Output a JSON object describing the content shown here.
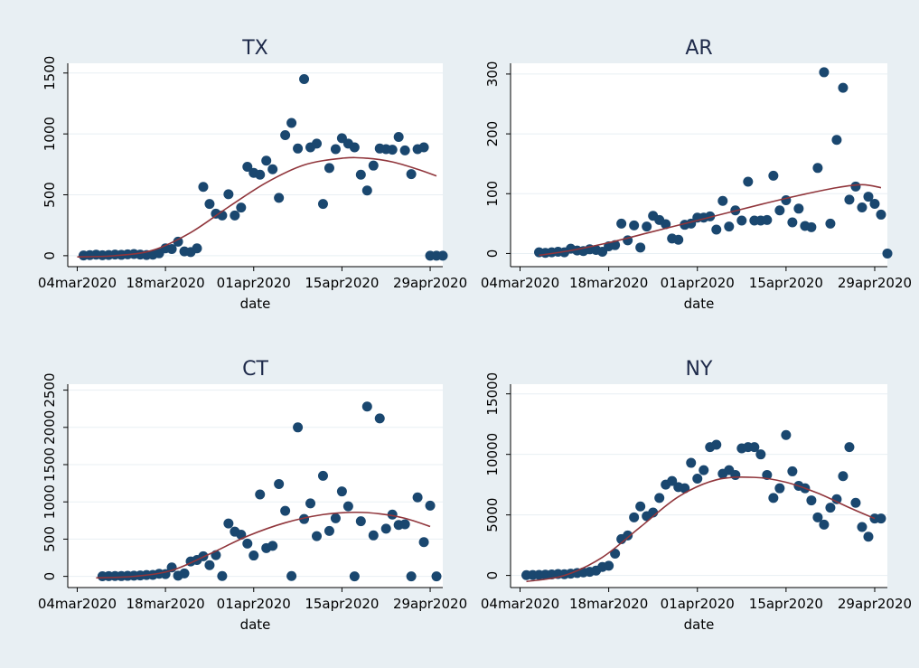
{
  "colors": {
    "background": "#e8eff3",
    "plot_area": "#ffffff",
    "gridline": "#e8eff3",
    "marker": "#1a476f",
    "fit_line": "#90353b",
    "text": "#000000",
    "title_text": "#1e2a4a"
  },
  "chart_data": [
    {
      "type": "scatter",
      "title": "TX",
      "xlabel": "date",
      "ylabel": "",
      "x_ticks": [
        "04mar2020",
        "18mar2020",
        "01apr2020",
        "15apr2020",
        "29apr2020"
      ],
      "x_tick_days": [
        0,
        14,
        28,
        42,
        56
      ],
      "xlim_days": [
        -1.5,
        58
      ],
      "y_ticks": [
        "0",
        "500",
        "1000",
        "1500"
      ],
      "y_tick_values": [
        0,
        500,
        1000,
        1500
      ],
      "ylim": [
        -90,
        1580
      ],
      "series": [
        {
          "kind": "points",
          "x_dates": [
            "05mar2020",
            "06mar2020",
            "07mar2020",
            "08mar2020",
            "09mar2020",
            "10mar2020",
            "11mar2020",
            "12mar2020",
            "13mar2020",
            "14mar2020",
            "15mar2020",
            "16mar2020",
            "17mar2020",
            "18mar2020",
            "19mar2020",
            "20mar2020",
            "21mar2020",
            "22mar2020",
            "23mar2020",
            "24mar2020",
            "25mar2020",
            "26mar2020",
            "27mar2020",
            "28mar2020",
            "29mar2020",
            "30mar2020",
            "31mar2020",
            "01apr2020",
            "02apr2020",
            "03apr2020",
            "04apr2020",
            "05apr2020",
            "06apr2020",
            "07apr2020",
            "08apr2020",
            "09apr2020",
            "10apr2020",
            "11apr2020",
            "12apr2020",
            "13apr2020",
            "14apr2020",
            "15apr2020",
            "16apr2020",
            "17apr2020",
            "18apr2020",
            "19apr2020",
            "20apr2020",
            "21apr2020",
            "22apr2020",
            "23apr2020",
            "24apr2020",
            "25apr2020",
            "26apr2020",
            "27apr2020",
            "28apr2020",
            "29apr2020",
            "30apr2020",
            "01may2020"
          ],
          "x": [
            1,
            2,
            3,
            4,
            5,
            6,
            7,
            8,
            9,
            10,
            11,
            12,
            13,
            14,
            15,
            16,
            17,
            18,
            19,
            20,
            21,
            22,
            23,
            24,
            25,
            26,
            27,
            28,
            29,
            30,
            31,
            32,
            33,
            34,
            35,
            36,
            37,
            38,
            39,
            40,
            41,
            42,
            43,
            44,
            45,
            46,
            47,
            48,
            49,
            50,
            51,
            52,
            53,
            54,
            55,
            56,
            57,
            58
          ],
          "y": [
            2,
            5,
            8,
            4,
            6,
            9,
            7,
            11,
            14,
            9,
            6,
            8,
            20,
            60,
            55,
            115,
            35,
            30,
            60,
            565,
            425,
            345,
            330,
            505,
            330,
            395,
            730,
            680,
            665,
            780,
            710,
            475,
            990,
            1090,
            880,
            1450,
            890,
            920,
            425,
            720,
            875,
            965,
            920,
            890,
            665,
            535,
            740,
            880,
            875,
            870,
            975,
            865,
            670,
            875,
            890,
            0,
            0,
            0
          ],
          "y_note_count": 58
        },
        {
          "kind": "fit",
          "x": [
            0,
            6,
            12,
            18,
            24,
            30,
            36,
            42,
            46,
            50,
            54,
            57
          ],
          "y": [
            -10,
            0,
            45,
            190,
            400,
            600,
            745,
            800,
            800,
            770,
            710,
            655
          ]
        }
      ]
    },
    {
      "type": "scatter",
      "title": "AR",
      "xlabel": "date",
      "ylabel": "",
      "x_ticks": [
        "04mar2020",
        "18mar2020",
        "01apr2020",
        "15apr2020",
        "29apr2020"
      ],
      "x_tick_days": [
        0,
        14,
        28,
        42,
        56
      ],
      "xlim_days": [
        -1.5,
        58
      ],
      "y_ticks": [
        "0",
        "100",
        "200",
        "300"
      ],
      "y_tick_values": [
        0,
        100,
        200,
        300
      ],
      "ylim": [
        -22,
        318
      ],
      "series": [
        {
          "kind": "points",
          "x": [
            3,
            4,
            5,
            6,
            7,
            8,
            9,
            10,
            11,
            12,
            13,
            14,
            15,
            16,
            17,
            18,
            19,
            20,
            21,
            22,
            23,
            24,
            25,
            26,
            27,
            28,
            29,
            30,
            31,
            32,
            33,
            34,
            35,
            36,
            37,
            38,
            39,
            40,
            41,
            42,
            43,
            44,
            45,
            46,
            47,
            48,
            49,
            50,
            51,
            52,
            53,
            54,
            55,
            56,
            57,
            58
          ],
          "y": [
            2,
            1,
            2,
            3,
            2,
            8,
            5,
            4,
            7,
            6,
            3,
            12,
            14,
            50,
            22,
            47,
            10,
            45,
            63,
            56,
            49,
            25,
            23,
            48,
            50,
            60,
            60,
            62,
            40,
            88,
            45,
            72,
            55,
            120,
            55,
            55,
            56,
            130,
            72,
            89,
            52,
            75,
            46,
            44,
            143,
            303,
            50,
            190,
            277,
            90,
            112,
            77,
            95,
            83,
            65,
            0
          ],
          "y_note_count": 55
        },
        {
          "kind": "fit",
          "x": [
            3,
            8,
            14,
            20,
            26,
            32,
            38,
            44,
            50,
            54,
            57
          ],
          "y": [
            -3,
            5,
            18,
            34,
            50,
            66,
            82,
            97,
            110,
            115,
            110
          ]
        }
      ]
    },
    {
      "type": "scatter",
      "title": "CT",
      "xlabel": "date",
      "ylabel": "",
      "x_ticks": [
        "04mar2020",
        "18mar2020",
        "01apr2020",
        "15apr2020",
        "29apr2020"
      ],
      "x_tick_days": [
        0,
        14,
        28,
        42,
        56
      ],
      "xlim_days": [
        -1.5,
        58
      ],
      "y_ticks": [
        "0",
        "500",
        "1000",
        "1500",
        "2000",
        "2500"
      ],
      "y_tick_values": [
        0,
        500,
        1000,
        1500,
        2000,
        2500
      ],
      "ylim": [
        -150,
        2580
      ],
      "series": [
        {
          "kind": "points",
          "x": [
            4,
            5,
            6,
            7,
            8,
            9,
            10,
            11,
            12,
            13,
            14,
            15,
            16,
            17,
            18,
            19,
            20,
            21,
            22,
            23,
            24,
            25,
            26,
            27,
            28,
            29,
            30,
            31,
            32,
            33,
            34,
            35,
            36,
            37,
            38,
            39,
            40,
            41,
            42,
            43,
            44,
            45,
            46,
            47,
            48,
            49,
            50,
            51,
            52,
            53,
            54,
            55,
            56,
            57
          ],
          "y": [
            2,
            3,
            5,
            4,
            7,
            10,
            12,
            18,
            20,
            35,
            30,
            120,
            10,
            40,
            200,
            220,
            270,
            150,
            285,
            5,
            710,
            600,
            560,
            440,
            280,
            1100,
            380,
            410,
            1240,
            880,
            5,
            2000,
            770,
            980,
            540,
            1350,
            610,
            780,
            1140,
            940,
            0,
            740,
            2280,
            550,
            2120,
            640,
            830,
            690,
            700,
            0,
            1060,
            460,
            950,
            0
          ],
          "y_note_count": 54
        },
        {
          "kind": "fit",
          "x": [
            3,
            9,
            15,
            21,
            27,
            33,
            39,
            44,
            48,
            52,
            56
          ],
          "y": [
            -20,
            0,
            80,
            300,
            540,
            720,
            830,
            860,
            840,
            780,
            670
          ]
        }
      ]
    },
    {
      "type": "scatter",
      "title": "NY",
      "xlabel": "date",
      "ylabel": "",
      "x_ticks": [
        "04mar2020",
        "18mar2020",
        "01apr2020",
        "15apr2020",
        "29apr2020"
      ],
      "x_tick_days": [
        0,
        14,
        28,
        42,
        56
      ],
      "xlim_days": [
        -1.5,
        58
      ],
      "y_ticks": [
        "0",
        "5000",
        "10000",
        "15000"
      ],
      "y_tick_values": [
        0,
        5000,
        10000,
        15000
      ],
      "ylim": [
        -1000,
        15800
      ],
      "series": [
        {
          "kind": "points",
          "x": [
            1,
            2,
            3,
            4,
            5,
            6,
            7,
            8,
            9,
            10,
            11,
            12,
            13,
            14,
            15,
            16,
            17,
            18,
            19,
            20,
            21,
            22,
            23,
            24,
            25,
            26,
            27,
            28,
            29,
            30,
            31,
            32,
            33,
            34,
            35,
            36,
            37,
            38,
            39,
            40,
            41,
            42,
            43,
            44,
            45,
            46,
            47,
            48,
            49,
            50,
            51,
            52,
            53,
            54,
            55,
            56,
            57
          ],
          "y": [
            30,
            40,
            50,
            60,
            80,
            120,
            100,
            150,
            200,
            250,
            300,
            400,
            700,
            800,
            1800,
            3000,
            3300,
            4800,
            5700,
            4900,
            5200,
            6400,
            7500,
            7800,
            7300,
            7200,
            9300,
            8000,
            8700,
            10600,
            10800,
            8400,
            8700,
            8300,
            10500,
            10600,
            10600,
            10000,
            8300,
            6400,
            7200,
            11600,
            8600,
            7400,
            7200,
            6200,
            4800,
            4200,
            5600,
            6300,
            8200,
            10600,
            6000,
            4000,
            3200,
            4700,
            4700
          ],
          "y_note_count": 57
        },
        {
          "kind": "fit",
          "x": [
            1,
            7,
            13,
            19,
            25,
            31,
            37,
            42,
            47,
            52,
            56
          ],
          "y": [
            -500,
            0,
            1500,
            4000,
            6500,
            7900,
            8100,
            7700,
            6800,
            5600,
            4700
          ]
        }
      ]
    }
  ]
}
